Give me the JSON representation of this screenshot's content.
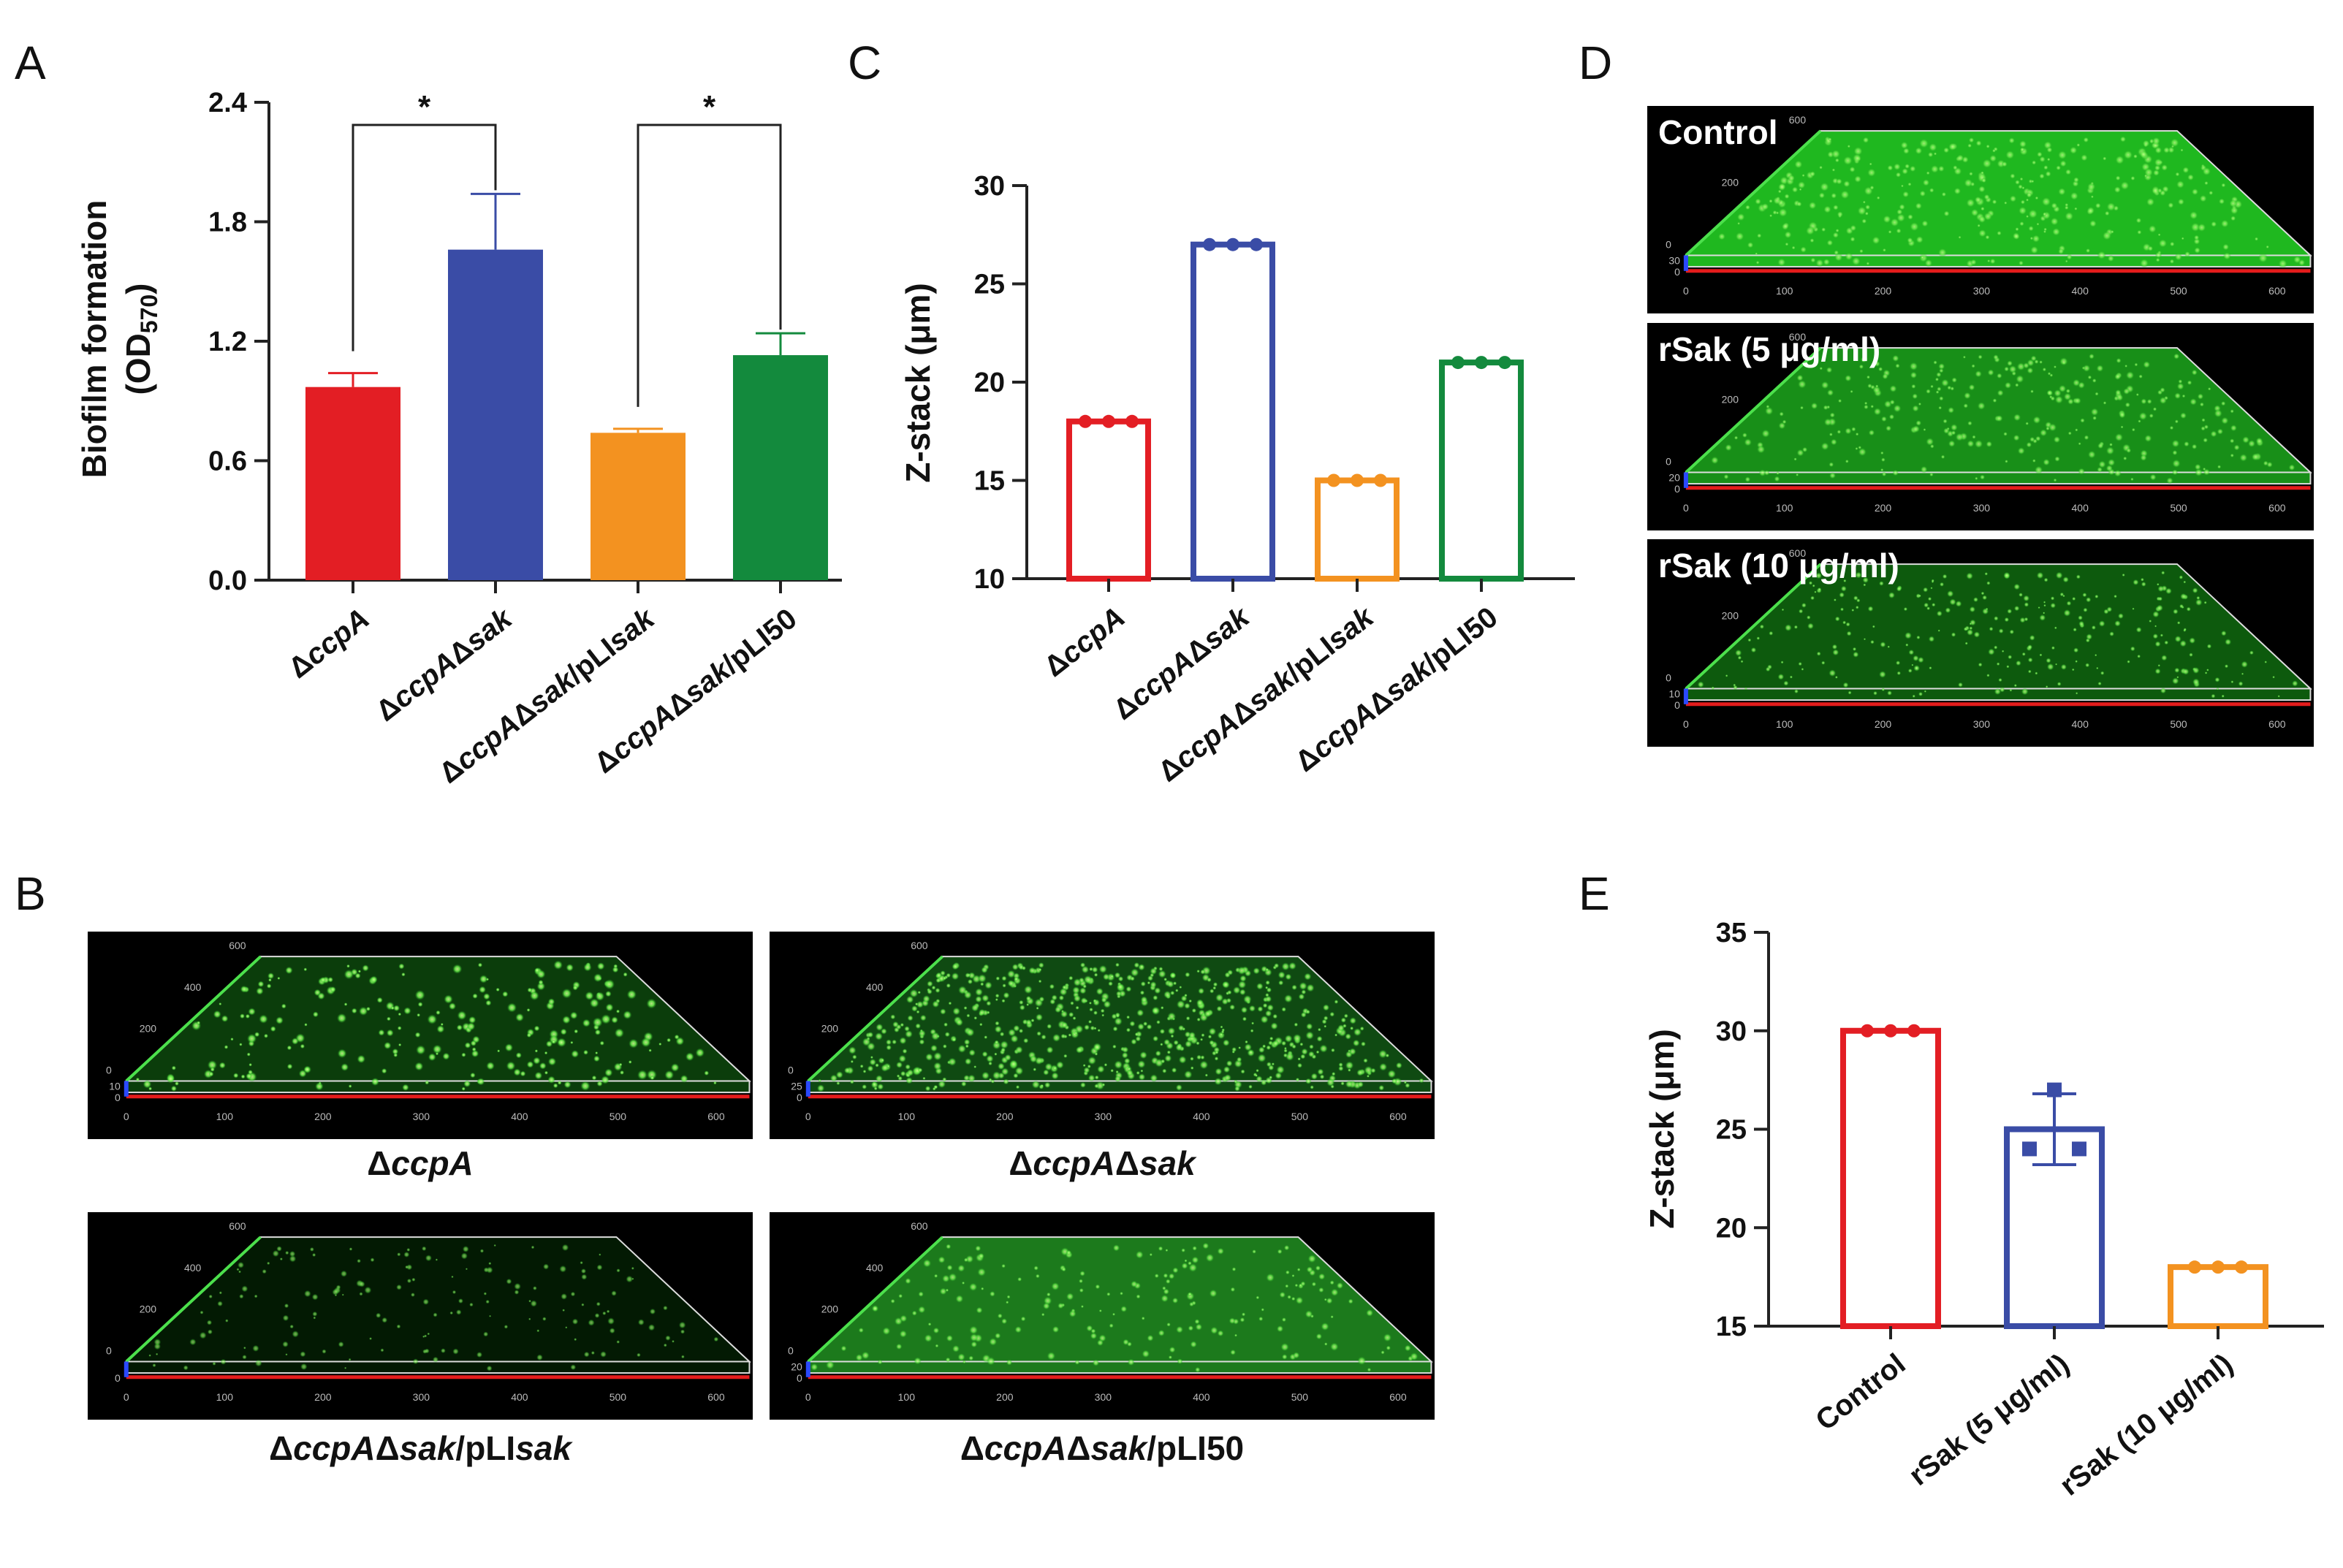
{
  "figure": {
    "panel_letters": {
      "a": "A",
      "b": "B",
      "c": "C",
      "d": "D",
      "e": "E"
    },
    "colors": {
      "red": "#e31e24",
      "blue": "#3a4ca6",
      "orange": "#f39220",
      "green": "#138a3d"
    },
    "panel_b": {
      "images": [
        {
          "caption": [
            "Δ",
            "ccpA",
            ""
          ],
          "z_tick": "10",
          "density": "sparse-bright"
        },
        {
          "caption": [
            "Δ",
            "ccpA",
            "Δ",
            "sak",
            ""
          ],
          "z_tick": "25",
          "density": "dense"
        },
        {
          "caption": [
            "Δ",
            "ccpA",
            "Δ",
            "sak",
            "/pLI",
            "sak"
          ],
          "z_tick": "",
          "density": "dark-sparse"
        },
        {
          "caption": [
            "Δ",
            "ccpA",
            "Δ",
            "sak",
            "/pLI50"
          ],
          "z_tick": "20",
          "density": "uniform"
        }
      ],
      "axis_ticks": [
        "0",
        "100",
        "200",
        "300",
        "400",
        "500",
        "600"
      ],
      "depth_ticks": [
        "0",
        "200",
        "400",
        "600"
      ]
    },
    "panel_d": {
      "images": [
        {
          "label": "Control",
          "z_tick": "30"
        },
        {
          "label": "rSak (5 μg/ml)",
          "z_tick": "20"
        },
        {
          "label": "rSak (10 μg/ml)",
          "z_tick": "10"
        }
      ],
      "axis_ticks": [
        "0",
        "100",
        "200",
        "300",
        "400",
        "500",
        "600"
      ],
      "depth_ticks": [
        "0",
        "200",
        "600"
      ]
    }
  },
  "chart_data": [
    {
      "panel": "A",
      "type": "bar",
      "ylabel_line1": "Biofilm formation",
      "ylabel_line2_main": "(OD",
      "ylabel_line2_sub": "570",
      "ylabel_line2_end": ")",
      "ylim": [
        0,
        2.4
      ],
      "yticks": [
        "0.0",
        "0.6",
        "1.2",
        "1.8",
        "2.4"
      ],
      "categories": [
        [
          "Δ",
          "ccpA"
        ],
        [
          "Δ",
          "ccpA",
          "Δ",
          "sak"
        ],
        [
          "Δ",
          "ccpA",
          "Δ",
          "sak",
          "/pLI",
          "sak"
        ],
        [
          "Δ",
          "ccpA",
          "Δ",
          "sak",
          "/pLI50"
        ]
      ],
      "values": [
        0.97,
        1.66,
        0.74,
        1.13
      ],
      "errors": [
        0.07,
        0.28,
        0.02,
        0.11
      ],
      "significance": [
        {
          "pair": [
            0,
            1
          ],
          "label": "*"
        },
        {
          "pair": [
            2,
            3
          ],
          "label": "*"
        }
      ],
      "grid": false
    },
    {
      "panel": "C",
      "type": "bar",
      "style": "hollow",
      "ylabel": "Z-stack (μm)",
      "ylim": [
        10,
        30
      ],
      "yticks": [
        "10",
        "15",
        "20",
        "25",
        "30"
      ],
      "categories": [
        [
          "Δ",
          "ccpA"
        ],
        [
          "Δ",
          "ccpA",
          "Δ",
          "sak"
        ],
        [
          "Δ",
          "ccpA",
          "Δ",
          "sak",
          "/pLI",
          "sak"
        ],
        [
          "Δ",
          "ccpA",
          "Δ",
          "sak",
          "/pLI50"
        ]
      ],
      "values": [
        18,
        27,
        15,
        21
      ],
      "points": [
        [
          18,
          18,
          18
        ],
        [
          27,
          27,
          27
        ],
        [
          15,
          15,
          15
        ],
        [
          21,
          21,
          21
        ]
      ],
      "grid": false
    },
    {
      "panel": "E",
      "type": "bar",
      "style": "hollow",
      "ylabel": "Z-stack (μm)",
      "ylim": [
        15,
        35
      ],
      "yticks": [
        "15",
        "20",
        "25",
        "30",
        "35"
      ],
      "categories": [
        [
          "Control"
        ],
        [
          "rSak (5 μg/ml)"
        ],
        [
          "rSak (10 μg/ml)"
        ]
      ],
      "values": [
        30,
        25,
        18
      ],
      "errors": [
        0,
        1.8,
        0
      ],
      "points": [
        [
          30,
          30,
          30
        ],
        [
          27,
          24,
          24
        ],
        [
          18,
          18,
          18
        ]
      ],
      "grid": false
    }
  ]
}
